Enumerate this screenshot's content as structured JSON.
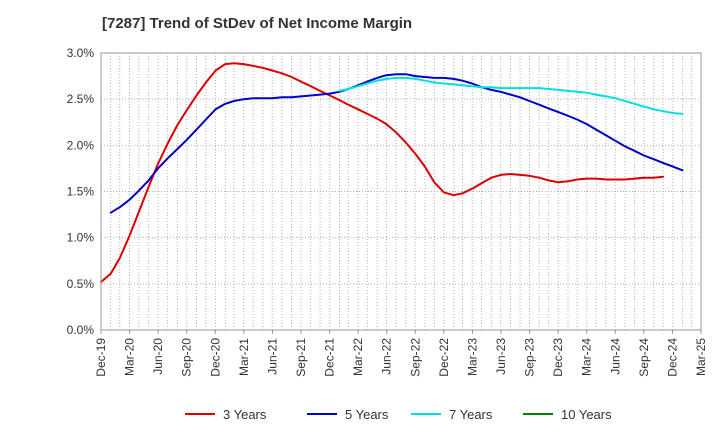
{
  "chart_data": {
    "type": "line",
    "title": "[7287]  Trend of StDev of Net Income Margin",
    "xlabel": "",
    "ylabel": "",
    "x_categories": [
      "Dec-19",
      "Mar-20",
      "Jun-20",
      "Sep-20",
      "Dec-20",
      "Mar-21",
      "Jun-21",
      "Sep-21",
      "Dec-21",
      "Mar-22",
      "Jun-22",
      "Sep-22",
      "Dec-22",
      "Mar-23",
      "Jun-23",
      "Sep-23",
      "Dec-23",
      "Mar-24",
      "Jun-24",
      "Sep-24",
      "Dec-24",
      "Mar-25"
    ],
    "y_ticks": [
      "0.0%",
      "0.5%",
      "1.0%",
      "1.5%",
      "2.0%",
      "2.5%",
      "3.0%"
    ],
    "ylim": [
      0,
      3.0
    ],
    "y_unit": "%",
    "grid": true,
    "legend_position": "bottom",
    "series": [
      {
        "name": "3 Years",
        "color": "#dd0000",
        "points": [
          [
            "2019-12-31",
            0.52
          ],
          [
            "2020-01-31",
            0.61
          ],
          [
            "2020-02-29",
            0.78
          ],
          [
            "2020-03-31",
            1.02
          ],
          [
            "2020-04-30",
            1.28
          ],
          [
            "2020-05-31",
            1.55
          ],
          [
            "2020-06-30",
            1.8
          ],
          [
            "2020-07-31",
            2.02
          ],
          [
            "2020-08-31",
            2.22
          ],
          [
            "2020-09-30",
            2.38
          ],
          [
            "2020-10-31",
            2.54
          ],
          [
            "2020-11-30",
            2.68
          ],
          [
            "2020-12-31",
            2.81
          ],
          [
            "2021-01-31",
            2.88
          ],
          [
            "2021-02-28",
            2.89
          ],
          [
            "2021-03-31",
            2.88
          ],
          [
            "2021-04-30",
            2.86
          ],
          [
            "2021-05-31",
            2.84
          ],
          [
            "2021-06-30",
            2.81
          ],
          [
            "2021-07-31",
            2.78
          ],
          [
            "2021-08-31",
            2.74
          ],
          [
            "2021-09-30",
            2.69
          ],
          [
            "2021-10-31",
            2.64
          ],
          [
            "2021-11-30",
            2.59
          ],
          [
            "2021-12-31",
            2.54
          ],
          [
            "2022-01-31",
            2.49
          ],
          [
            "2022-02-28",
            2.44
          ],
          [
            "2022-03-31",
            2.39
          ],
          [
            "2022-04-30",
            2.34
          ],
          [
            "2022-05-31",
            2.29
          ],
          [
            "2022-06-30",
            2.23
          ],
          [
            "2022-07-31",
            2.14
          ],
          [
            "2022-08-31",
            2.03
          ],
          [
            "2022-09-30",
            1.91
          ],
          [
            "2022-10-31",
            1.77
          ],
          [
            "2022-11-30",
            1.6
          ],
          [
            "2022-12-31",
            1.49
          ],
          [
            "2023-01-31",
            1.46
          ],
          [
            "2023-02-28",
            1.48
          ],
          [
            "2023-03-31",
            1.53
          ],
          [
            "2023-04-30",
            1.59
          ],
          [
            "2023-05-31",
            1.65
          ],
          [
            "2023-06-30",
            1.68
          ],
          [
            "2023-07-31",
            1.69
          ],
          [
            "2023-08-31",
            1.68
          ],
          [
            "2023-09-30",
            1.67
          ],
          [
            "2023-10-31",
            1.65
          ],
          [
            "2023-11-30",
            1.62
          ],
          [
            "2023-12-31",
            1.6
          ],
          [
            "2024-01-31",
            1.61
          ],
          [
            "2024-02-29",
            1.63
          ],
          [
            "2024-03-31",
            1.64
          ],
          [
            "2024-04-30",
            1.64
          ],
          [
            "2024-05-31",
            1.63
          ],
          [
            "2024-06-30",
            1.63
          ],
          [
            "2024-07-31",
            1.63
          ],
          [
            "2024-08-31",
            1.64
          ],
          [
            "2024-09-30",
            1.65
          ],
          [
            "2024-10-31",
            1.65
          ],
          [
            "2024-11-30",
            1.66
          ]
        ]
      },
      {
        "name": "5 Years",
        "color": "#0000cc",
        "points": [
          [
            "2020-01-31",
            1.27
          ],
          [
            "2020-02-29",
            1.33
          ],
          [
            "2020-03-31",
            1.41
          ],
          [
            "2020-04-30",
            1.51
          ],
          [
            "2020-05-31",
            1.62
          ],
          [
            "2020-06-30",
            1.75
          ],
          [
            "2020-07-31",
            1.86
          ],
          [
            "2020-08-31",
            1.96
          ],
          [
            "2020-09-30",
            2.06
          ],
          [
            "2020-10-31",
            2.17
          ],
          [
            "2020-11-30",
            2.28
          ],
          [
            "2020-12-31",
            2.39
          ],
          [
            "2021-01-31",
            2.45
          ],
          [
            "2021-02-28",
            2.48
          ],
          [
            "2021-03-31",
            2.5
          ],
          [
            "2021-04-30",
            2.51
          ],
          [
            "2021-05-31",
            2.51
          ],
          [
            "2021-06-30",
            2.51
          ],
          [
            "2021-07-31",
            2.52
          ],
          [
            "2021-08-31",
            2.52
          ],
          [
            "2021-09-30",
            2.53
          ],
          [
            "2021-10-31",
            2.54
          ],
          [
            "2021-11-30",
            2.55
          ],
          [
            "2021-12-31",
            2.56
          ],
          [
            "2022-01-31",
            2.58
          ],
          [
            "2022-02-28",
            2.61
          ],
          [
            "2022-03-31",
            2.65
          ],
          [
            "2022-04-30",
            2.69
          ],
          [
            "2022-05-31",
            2.73
          ],
          [
            "2022-06-30",
            2.76
          ],
          [
            "2022-07-31",
            2.77
          ],
          [
            "2022-08-31",
            2.77
          ],
          [
            "2022-09-30",
            2.75
          ],
          [
            "2022-10-31",
            2.74
          ],
          [
            "2022-11-30",
            2.73
          ],
          [
            "2022-12-31",
            2.73
          ],
          [
            "2023-01-31",
            2.72
          ],
          [
            "2023-02-28",
            2.7
          ],
          [
            "2023-03-31",
            2.67
          ],
          [
            "2023-04-30",
            2.63
          ],
          [
            "2023-05-31",
            2.6
          ],
          [
            "2023-06-30",
            2.58
          ],
          [
            "2023-07-31",
            2.55
          ],
          [
            "2023-08-31",
            2.52
          ],
          [
            "2023-09-30",
            2.48
          ],
          [
            "2023-10-31",
            2.44
          ],
          [
            "2023-11-30",
            2.4
          ],
          [
            "2023-12-31",
            2.36
          ],
          [
            "2024-01-31",
            2.32
          ],
          [
            "2024-02-29",
            2.28
          ],
          [
            "2024-03-31",
            2.23
          ],
          [
            "2024-04-30",
            2.17
          ],
          [
            "2024-05-31",
            2.11
          ],
          [
            "2024-06-30",
            2.05
          ],
          [
            "2024-07-31",
            1.99
          ],
          [
            "2024-08-31",
            1.94
          ],
          [
            "2024-09-30",
            1.89
          ],
          [
            "2024-10-31",
            1.85
          ],
          [
            "2024-11-30",
            1.81
          ],
          [
            "2024-12-31",
            1.77
          ],
          [
            "2025-01-31",
            1.73
          ]
        ]
      },
      {
        "name": "7 Years",
        "color": "#00e0e0",
        "points": [
          [
            "2022-01-31",
            2.59
          ],
          [
            "2022-02-28",
            2.61
          ],
          [
            "2022-03-31",
            2.64
          ],
          [
            "2022-04-30",
            2.67
          ],
          [
            "2022-05-31",
            2.7
          ],
          [
            "2022-06-30",
            2.72
          ],
          [
            "2022-07-31",
            2.73
          ],
          [
            "2022-08-31",
            2.73
          ],
          [
            "2022-09-30",
            2.72
          ],
          [
            "2022-10-31",
            2.7
          ],
          [
            "2022-11-30",
            2.68
          ],
          [
            "2022-12-31",
            2.67
          ],
          [
            "2023-01-31",
            2.66
          ],
          [
            "2023-02-28",
            2.65
          ],
          [
            "2023-03-31",
            2.64
          ],
          [
            "2023-04-30",
            2.63
          ],
          [
            "2023-05-31",
            2.63
          ],
          [
            "2023-06-30",
            2.62
          ],
          [
            "2023-07-31",
            2.62
          ],
          [
            "2023-08-31",
            2.62
          ],
          [
            "2023-09-30",
            2.62
          ],
          [
            "2023-10-31",
            2.62
          ],
          [
            "2023-11-30",
            2.61
          ],
          [
            "2023-12-31",
            2.6
          ],
          [
            "2024-01-31",
            2.59
          ],
          [
            "2024-02-29",
            2.58
          ],
          [
            "2024-03-31",
            2.57
          ],
          [
            "2024-04-30",
            2.55
          ],
          [
            "2024-05-31",
            2.53
          ],
          [
            "2024-06-30",
            2.51
          ],
          [
            "2024-07-31",
            2.48
          ],
          [
            "2024-08-31",
            2.45
          ],
          [
            "2024-09-30",
            2.42
          ],
          [
            "2024-10-31",
            2.39
          ],
          [
            "2024-11-30",
            2.37
          ],
          [
            "2024-12-31",
            2.35
          ],
          [
            "2025-01-31",
            2.34
          ]
        ]
      },
      {
        "name": "10 Years",
        "color": "#008000",
        "points": []
      }
    ]
  }
}
